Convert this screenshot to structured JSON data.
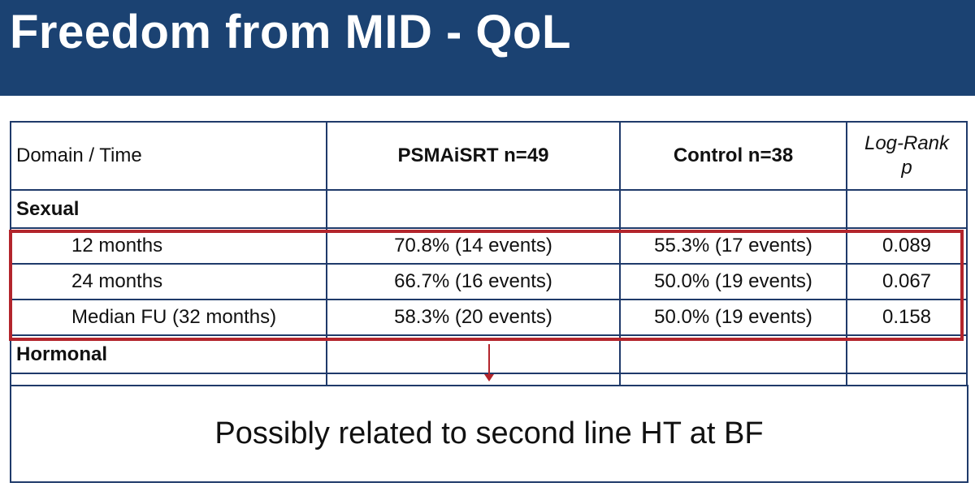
{
  "title": "Freedom from MID - QoL",
  "table": {
    "headers": {
      "domain_time": "Domain / Time",
      "psma": "PSMAiSRT n=49",
      "control": "Control n=38",
      "log_rank_line1": "Log-Rank",
      "log_rank_line2": "p"
    },
    "sections": [
      {
        "label": "Sexual",
        "rows": [
          {
            "time": "12 months",
            "psma": "70.8% (14 events)",
            "control": "55.3% (17 events)",
            "p": "0.089"
          },
          {
            "time": "24 months",
            "psma": "66.7% (16 events)",
            "control": "50.0% (19 events)",
            "p": "0.067"
          },
          {
            "time": "Median FU (32 months)",
            "psma": "58.3% (20 events)",
            "control": "50.0% (19 events)",
            "p": "0.158"
          }
        ]
      },
      {
        "label": "Hormonal",
        "rows": []
      }
    ]
  },
  "callout": "Possibly related to second line HT at BF",
  "colors": {
    "title_bar": "#1b4272",
    "psma_header": "#4bbfcb",
    "control_header": "#b3252c",
    "highlight": "#b3252c",
    "table_border": "#1f3a6a"
  }
}
